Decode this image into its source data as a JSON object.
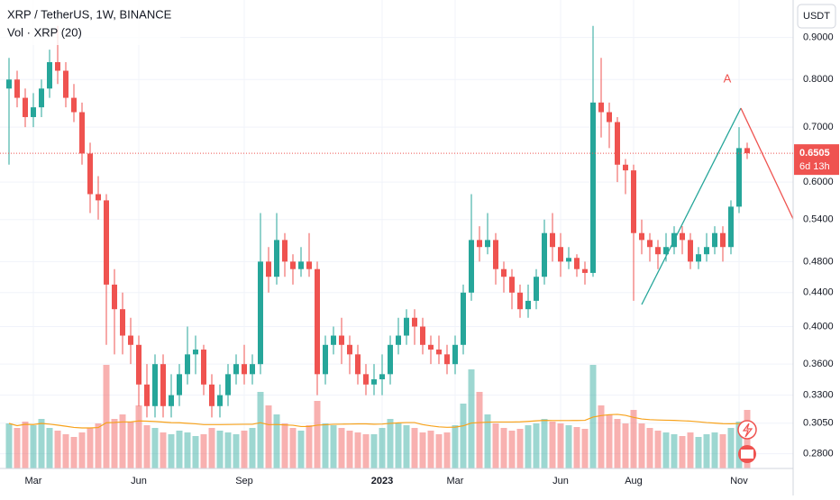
{
  "chart_data": {
    "type": "candlestick",
    "title": "XRP / TetherUS, 1W, BINANCE",
    "volume_label": "Vol · XRP (20)",
    "volume_ma_period": 20,
    "currency": "USDT",
    "countdown": "6d 13h",
    "annotation": "A",
    "log_scale": true,
    "grid": true,
    "up_color": "#26a69a",
    "down_color": "#ef5350",
    "ma_color": "#f7a21b",
    "categories": [
      null,
      null,
      null,
      "Mar",
      null,
      null,
      null,
      null,
      null,
      null,
      null,
      null,
      null,
      null,
      null,
      null,
      "Jun",
      null,
      null,
      null,
      null,
      null,
      null,
      null,
      null,
      null,
      null,
      null,
      null,
      "Sep",
      null,
      null,
      null,
      null,
      null,
      null,
      null,
      null,
      null,
      null,
      null,
      null,
      null,
      null,
      null,
      null,
      "2023",
      null,
      null,
      null,
      null,
      null,
      null,
      null,
      null,
      "Mar",
      null,
      null,
      null,
      null,
      null,
      null,
      null,
      null,
      null,
      null,
      null,
      null,
      "Jun",
      null,
      null,
      null,
      null,
      null,
      null,
      null,
      null,
      "Aug",
      null,
      null,
      null,
      null,
      null,
      null,
      null,
      null,
      null,
      null,
      null,
      null,
      "Nov",
      null
    ],
    "open": [
      0.78,
      0.8,
      0.76,
      0.72,
      0.74,
      0.78,
      0.84,
      0.82,
      0.76,
      0.73,
      0.65,
      0.58,
      0.57,
      0.45,
      0.42,
      0.39,
      0.38,
      0.34,
      0.32,
      0.36,
      0.32,
      0.33,
      0.35,
      0.37,
      0.375,
      0.34,
      0.32,
      0.33,
      0.35,
      0.36,
      0.35,
      0.36,
      0.48,
      0.46,
      0.51,
      0.48,
      0.47,
      0.48,
      0.47,
      0.35,
      0.38,
      0.39,
      0.38,
      0.37,
      0.35,
      0.34,
      0.345,
      0.35,
      0.38,
      0.39,
      0.41,
      0.4,
      0.38,
      0.375,
      0.37,
      0.36,
      0.38,
      0.44,
      0.51,
      0.5,
      0.51,
      0.47,
      0.46,
      0.44,
      0.42,
      0.43,
      0.46,
      0.52,
      0.5,
      0.48,
      0.485,
      0.47,
      0.465,
      0.75,
      0.73,
      0.71,
      0.63,
      0.62,
      0.52,
      0.51,
      0.5,
      0.49,
      0.5,
      0.52,
      0.51,
      0.48,
      0.49,
      0.5,
      0.52,
      0.5,
      0.56,
      0.66
    ],
    "high": [
      0.85,
      0.82,
      0.78,
      0.77,
      0.8,
      0.87,
      0.93,
      0.84,
      0.79,
      0.75,
      0.67,
      0.61,
      0.58,
      0.47,
      0.44,
      0.41,
      0.39,
      0.36,
      0.37,
      0.37,
      0.35,
      0.36,
      0.4,
      0.39,
      0.38,
      0.35,
      0.34,
      0.36,
      0.37,
      0.38,
      0.37,
      0.55,
      0.5,
      0.55,
      0.52,
      0.49,
      0.5,
      0.52,
      0.48,
      0.39,
      0.4,
      0.41,
      0.39,
      0.38,
      0.36,
      0.36,
      0.37,
      0.39,
      0.41,
      0.42,
      0.42,
      0.41,
      0.39,
      0.39,
      0.38,
      0.39,
      0.45,
      0.58,
      0.53,
      0.55,
      0.52,
      0.48,
      0.47,
      0.45,
      0.45,
      0.47,
      0.54,
      0.55,
      0.52,
      0.5,
      0.49,
      0.48,
      0.93,
      0.85,
      0.75,
      0.72,
      0.64,
      0.63,
      0.54,
      0.52,
      0.51,
      0.52,
      0.53,
      0.53,
      0.52,
      0.5,
      0.52,
      0.53,
      0.53,
      0.57,
      0.7,
      0.67
    ],
    "low": [
      0.63,
      0.74,
      0.7,
      0.7,
      0.72,
      0.76,
      0.79,
      0.74,
      0.71,
      0.63,
      0.55,
      0.54,
      0.38,
      0.37,
      0.37,
      0.36,
      0.32,
      0.31,
      0.31,
      0.31,
      0.31,
      0.32,
      0.34,
      0.35,
      0.33,
      0.31,
      0.31,
      0.32,
      0.34,
      0.34,
      0.34,
      0.35,
      0.44,
      0.45,
      0.46,
      0.45,
      0.46,
      0.46,
      0.33,
      0.34,
      0.37,
      0.36,
      0.35,
      0.34,
      0.33,
      0.33,
      0.33,
      0.34,
      0.37,
      0.38,
      0.38,
      0.37,
      0.36,
      0.36,
      0.35,
      0.35,
      0.37,
      0.43,
      0.48,
      0.49,
      0.45,
      0.44,
      0.42,
      0.41,
      0.41,
      0.42,
      0.45,
      0.48,
      0.46,
      0.47,
      0.46,
      0.45,
      0.46,
      0.68,
      0.66,
      0.6,
      0.58,
      0.43,
      0.49,
      0.48,
      0.47,
      0.48,
      0.49,
      0.49,
      0.47,
      0.47,
      0.48,
      0.49,
      0.48,
      0.49,
      0.55,
      0.64
    ],
    "close": [
      0.8,
      0.76,
      0.72,
      0.74,
      0.78,
      0.84,
      0.82,
      0.76,
      0.73,
      0.65,
      0.58,
      0.57,
      0.45,
      0.42,
      0.39,
      0.38,
      0.34,
      0.32,
      0.36,
      0.32,
      0.33,
      0.35,
      0.37,
      0.375,
      0.34,
      0.32,
      0.33,
      0.35,
      0.36,
      0.35,
      0.36,
      0.48,
      0.46,
      0.51,
      0.48,
      0.47,
      0.48,
      0.47,
      0.35,
      0.38,
      0.39,
      0.38,
      0.37,
      0.35,
      0.34,
      0.345,
      0.35,
      0.38,
      0.39,
      0.41,
      0.4,
      0.38,
      0.375,
      0.37,
      0.36,
      0.38,
      0.44,
      0.51,
      0.5,
      0.51,
      0.47,
      0.46,
      0.44,
      0.42,
      0.43,
      0.46,
      0.52,
      0.5,
      0.48,
      0.485,
      0.47,
      0.465,
      0.75,
      0.73,
      0.71,
      0.63,
      0.62,
      0.52,
      0.51,
      0.5,
      0.49,
      0.5,
      0.52,
      0.51,
      0.48,
      0.49,
      0.5,
      0.52,
      0.5,
      0.56,
      0.66,
      0.6505
    ],
    "volume": [
      50,
      45,
      52,
      48,
      55,
      45,
      42,
      38,
      35,
      40,
      45,
      50,
      115,
      55,
      60,
      52,
      70,
      48,
      45,
      40,
      38,
      42,
      40,
      36,
      38,
      45,
      42,
      40,
      38,
      42,
      45,
      85,
      70,
      60,
      50,
      45,
      42,
      48,
      75,
      50,
      48,
      45,
      42,
      40,
      38,
      38,
      45,
      55,
      50,
      48,
      45,
      40,
      42,
      38,
      40,
      48,
      72,
      110,
      85,
      60,
      50,
      45,
      42,
      44,
      48,
      50,
      55,
      52,
      50,
      48,
      46,
      44,
      115,
      70,
      60,
      55,
      50,
      65,
      50,
      45,
      42,
      40,
      38,
      36,
      40,
      35,
      38,
      40,
      38,
      45,
      52,
      65
    ],
    "ylim": [
      0.27,
      1.0
    ],
    "yticks": [
      {
        "value": 0.9,
        "label": "0.9000"
      },
      {
        "value": 0.8,
        "label": "0.8000"
      },
      {
        "value": 0.7,
        "label": "0.7000"
      },
      {
        "value": 0.6,
        "label": "0.6000"
      },
      {
        "value": 0.54,
        "label": "0.5400"
      },
      {
        "value": 0.48,
        "label": "0.4800"
      },
      {
        "value": 0.44,
        "label": "0.4400"
      },
      {
        "value": 0.4,
        "label": "0.4000"
      },
      {
        "value": 0.36,
        "label": "0.3600"
      },
      {
        "value": 0.33,
        "label": "0.3300"
      },
      {
        "value": 0.305,
        "label": "0.3050"
      },
      {
        "value": 0.28,
        "label": "0.2800"
      }
    ]
  }
}
